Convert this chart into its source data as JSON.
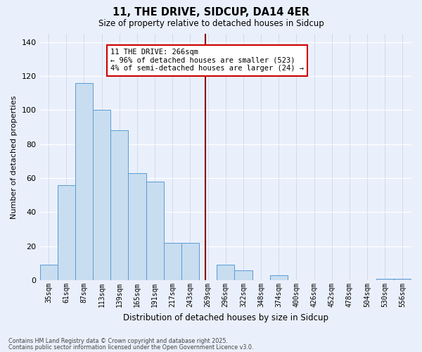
{
  "title": "11, THE DRIVE, SIDCUP, DA14 4ER",
  "subtitle": "Size of property relative to detached houses in Sidcup",
  "xlabel": "Distribution of detached houses by size in Sidcup",
  "ylabel": "Number of detached properties",
  "bar_labels": [
    "35sqm",
    "61sqm",
    "87sqm",
    "113sqm",
    "139sqm",
    "165sqm",
    "191sqm",
    "217sqm",
    "243sqm",
    "269sqm",
    "296sqm",
    "322sqm",
    "348sqm",
    "374sqm",
    "400sqm",
    "426sqm",
    "452sqm",
    "478sqm",
    "504sqm",
    "530sqm",
    "556sqm"
  ],
  "bar_values": [
    9,
    56,
    116,
    100,
    88,
    63,
    58,
    22,
    22,
    0,
    9,
    6,
    0,
    3,
    0,
    0,
    0,
    0,
    0,
    1,
    1
  ],
  "bar_color": "#c8ddf0",
  "bar_edge_color": "#5b9bd5",
  "background_color": "#eaf0fb",
  "grid_color": "#d0d8e8",
  "ylim": [
    0,
    145
  ],
  "yticks": [
    0,
    20,
    40,
    60,
    80,
    100,
    120,
    140
  ],
  "vline_color": "#8b0000",
  "annotation_title": "11 THE DRIVE: 266sqm",
  "annotation_line1": "← 96% of detached houses are smaller (523)",
  "annotation_line2": "4% of semi-detached houses are larger (24) →",
  "annotation_box_color": "#ffffff",
  "annotation_box_edge": "#cc0000",
  "footnote1": "Contains HM Land Registry data © Crown copyright and database right 2025.",
  "footnote2": "Contains public sector information licensed under the Open Government Licence v3.0."
}
